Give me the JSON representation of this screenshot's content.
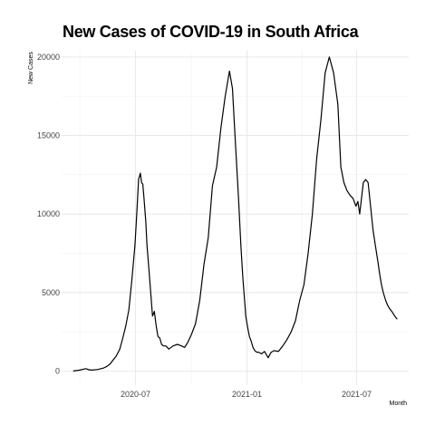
{
  "chart_data": {
    "type": "line",
    "title": "New Cases of COVID-19 in South Africa",
    "xlabel": "Month",
    "ylabel": "New Cases",
    "ylim": [
      -900,
      20400
    ],
    "xlim": [
      "2020-03-01",
      "2021-09-25"
    ],
    "y_ticks": [
      0,
      5000,
      10000,
      15000,
      20000
    ],
    "y_tick_labels": [
      "0",
      "5000",
      "10000",
      "15000",
      "20000"
    ],
    "x_ticks": [
      "2020-07-01",
      "2021-01-01",
      "2021-07-01"
    ],
    "x_tick_labels": [
      "2020-07",
      "2021-01",
      "2021-07"
    ],
    "grid": true,
    "legend": "none",
    "line_color": "#000000",
    "series": [
      {
        "x": [
          "2020-03-20",
          "2020-03-30",
          "2020-04-10",
          "2020-04-15",
          "2020-04-20",
          "2020-04-30",
          "2020-05-10",
          "2020-05-15",
          "2020-05-20",
          "2020-05-25",
          "2020-05-30",
          "2020-06-05",
          "2020-06-10",
          "2020-06-15",
          "2020-06-20",
          "2020-06-25",
          "2020-06-30",
          "2020-07-03",
          "2020-07-06",
          "2020-07-09",
          "2020-07-11",
          "2020-07-13",
          "2020-07-15",
          "2020-07-18",
          "2020-07-20",
          "2020-07-23",
          "2020-07-26",
          "2020-07-29",
          "2020-08-01",
          "2020-08-04",
          "2020-08-07",
          "2020-08-10",
          "2020-08-13",
          "2020-08-16",
          "2020-08-20",
          "2020-08-25",
          "2020-09-01",
          "2020-09-08",
          "2020-09-15",
          "2020-09-20",
          "2020-09-25",
          "2020-10-01",
          "2020-10-08",
          "2020-10-15",
          "2020-10-22",
          "2020-10-29",
          "2020-11-05",
          "2020-11-12",
          "2020-11-19",
          "2020-11-26",
          "2020-12-03",
          "2020-12-08",
          "2020-12-13",
          "2020-12-18",
          "2020-12-22",
          "2020-12-25",
          "2020-12-28",
          "2020-12-30",
          "2021-01-02",
          "2021-01-05",
          "2021-01-08",
          "2021-01-11",
          "2021-01-14",
          "2021-01-17",
          "2021-01-20",
          "2021-01-25",
          "2021-01-30",
          "2021-02-05",
          "2021-02-10",
          "2021-02-15",
          "2021-02-22",
          "2021-03-01",
          "2021-03-08",
          "2021-03-15",
          "2021-03-22",
          "2021-03-29",
          "2021-04-05",
          "2021-04-12",
          "2021-04-19",
          "2021-04-26",
          "2021-05-03",
          "2021-05-10",
          "2021-05-17",
          "2021-05-24",
          "2021-05-31",
          "2021-06-05",
          "2021-06-10",
          "2021-06-15",
          "2021-06-20",
          "2021-06-25",
          "2021-06-30",
          "2021-07-03",
          "2021-07-06",
          "2021-07-09",
          "2021-07-12",
          "2021-07-16",
          "2021-07-20",
          "2021-07-24",
          "2021-07-28",
          "2021-08-01",
          "2021-08-05",
          "2021-08-08",
          "2021-08-11",
          "2021-08-14",
          "2021-08-18",
          "2021-08-21",
          "2021-08-24",
          "2021-08-28",
          "2021-09-02",
          "2021-09-06"
        ],
        "values": [
          0,
          50,
          150,
          80,
          60,
          100,
          200,
          300,
          450,
          700,
          950,
          1400,
          2100,
          2900,
          3900,
          5800,
          8000,
          10000,
          12200,
          12600,
          12000,
          11900,
          11000,
          9500,
          8000,
          6500,
          5000,
          3500,
          3800,
          2900,
          2200,
          2100,
          1700,
          1600,
          1600,
          1400,
          1600,
          1700,
          1600,
          1500,
          1800,
          2300,
          3000,
          4500,
          6800,
          8500,
          11800,
          13000,
          15500,
          17500,
          19100,
          18000,
          14500,
          11000,
          8000,
          6000,
          4500,
          3500,
          2800,
          2200,
          1900,
          1500,
          1300,
          1200,
          1200,
          1100,
          1250,
          850,
          1200,
          1300,
          1250,
          1600,
          2000,
          2500,
          3200,
          4500,
          5500,
          7500,
          10000,
          13500,
          16000,
          19000,
          20000,
          19000,
          17000,
          13000,
          12000,
          11500,
          11200,
          11000,
          10500,
          10800,
          10000,
          11000,
          12000,
          12200,
          12000,
          10500,
          9000,
          8000,
          7000,
          6200,
          5500,
          5000,
          4500,
          4200,
          4000,
          3800,
          3500,
          3300
        ]
      }
    ]
  }
}
